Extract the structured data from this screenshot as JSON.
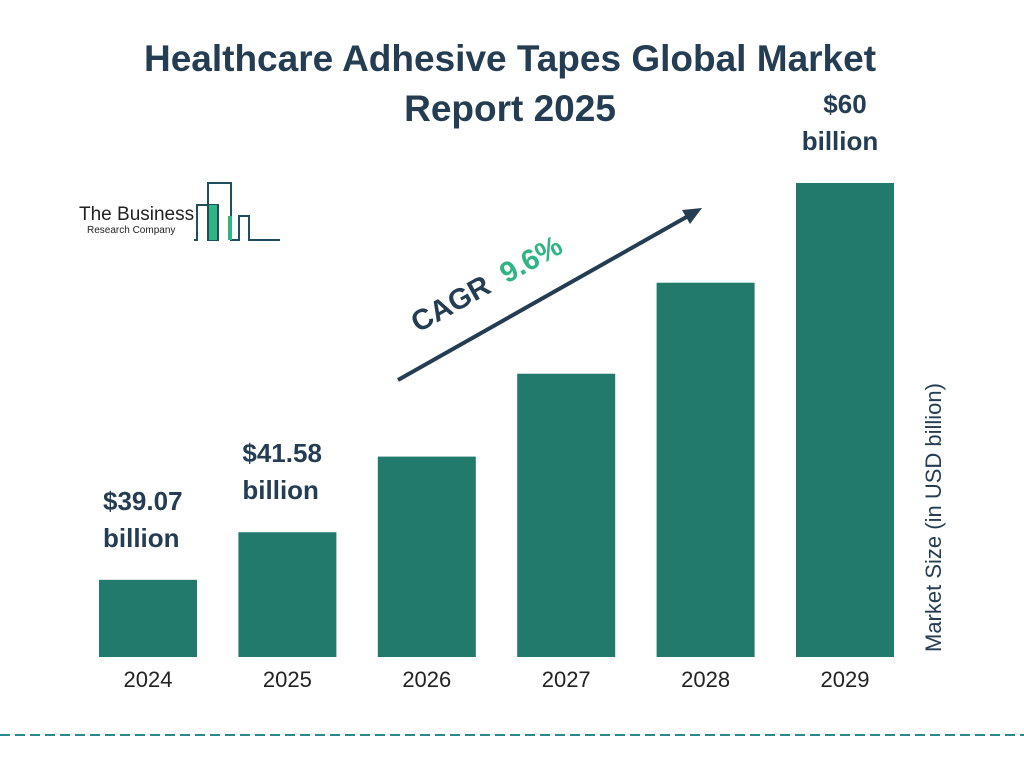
{
  "logo": {
    "line1": "The Business",
    "line2": "Research Company"
  },
  "chart_data": {
    "type": "bar",
    "title": "Healthcare Adhesive Tapes Global Market Report 2025",
    "ylabel": "Market Size (in USD billion)",
    "xlabel": "",
    "categories": [
      "2024",
      "2025",
      "2026",
      "2027",
      "2028",
      "2029"
    ],
    "values": [
      39.07,
      41.58,
      45.57,
      49.94,
      54.74,
      60
    ],
    "data_labels": [
      {
        "index": 0,
        "line1": "$39.07",
        "line2": "billion"
      },
      {
        "index": 1,
        "line1": "$41.58",
        "line2": "billion"
      },
      {
        "index": 5,
        "line1": "$60",
        "line2": "billion"
      }
    ],
    "ylim": [
      35,
      60
    ],
    "grid": false,
    "bar_color": "#217a6b",
    "annotation": {
      "label": "CAGR",
      "value": "9.6%",
      "value_color": "#2fb584",
      "arrow_color": "#253d52"
    }
  }
}
